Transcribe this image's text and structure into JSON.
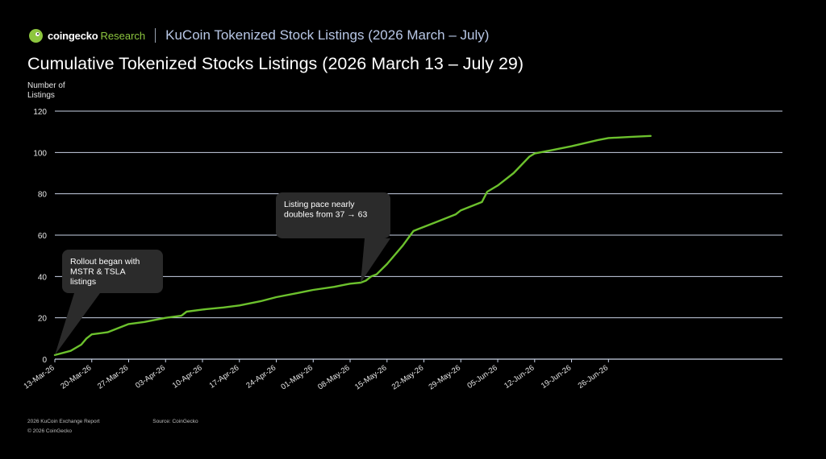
{
  "header": {
    "brand_name": "coingecko",
    "brand_suffix": "Research",
    "report_title": "KuCoin Tokenized Stock Listings (2026 March – July)"
  },
  "footer": {
    "report": "2026 KuCoin Exchange Report",
    "source": "Source: CoinGecko",
    "copyright": "© 2026 CoinGecko"
  },
  "colors": {
    "line": "#6cc12d",
    "grid": "#c9d2e6",
    "background": "#000000",
    "callout": "#2b2b2b"
  },
  "chart_data": {
    "type": "line",
    "title": "Cumulative Tokenized Stocks Listings (2026 March 13 – July 29)",
    "ylabel": "Number of Listings",
    "xlabel": "",
    "ylim": [
      0,
      120
    ],
    "yticks": [
      0,
      20,
      40,
      60,
      80,
      100,
      120
    ],
    "xlim": [
      "2026-03-13",
      "2026-07-29"
    ],
    "xticks": [
      {
        "date": "2026-03-13",
        "label": "13-Mar-26"
      },
      {
        "date": "2026-03-20",
        "label": "20-Mar-26"
      },
      {
        "date": "2026-03-27",
        "label": "27-Mar-26"
      },
      {
        "date": "2026-04-03",
        "label": "03-Apr-26"
      },
      {
        "date": "2026-04-10",
        "label": "10-Apr-26"
      },
      {
        "date": "2026-04-17",
        "label": "17-Apr-26"
      },
      {
        "date": "2026-04-24",
        "label": "24-Apr-26"
      },
      {
        "date": "2026-05-01",
        "label": "01-May-26"
      },
      {
        "date": "2026-05-08",
        "label": "08-May-26"
      },
      {
        "date": "2026-05-15",
        "label": "15-May-26"
      },
      {
        "date": "2026-05-22",
        "label": "22-May-26"
      },
      {
        "date": "2026-05-29",
        "label": "29-May-26"
      },
      {
        "date": "2026-06-05",
        "label": "05-Jun-26"
      },
      {
        "date": "2026-06-12",
        "label": "12-Jun-26"
      },
      {
        "date": "2026-06-19",
        "label": "19-Jun-26"
      },
      {
        "date": "2026-06-26",
        "label": "26-Jun-26"
      }
    ],
    "grid": true,
    "series": [
      {
        "points": [
          [
            "2026-03-13",
            2
          ],
          [
            "2026-03-16",
            4
          ],
          [
            "2026-03-18",
            7
          ],
          [
            "2026-03-19",
            10
          ],
          [
            "2026-03-20",
            12
          ],
          [
            "2026-03-23",
            13
          ],
          [
            "2026-03-27",
            17
          ],
          [
            "2026-03-30",
            18
          ],
          [
            "2026-04-03",
            20
          ],
          [
            "2026-04-06",
            21
          ],
          [
            "2026-04-07",
            23
          ],
          [
            "2026-04-10",
            24
          ],
          [
            "2026-04-14",
            25
          ],
          [
            "2026-04-17",
            26
          ],
          [
            "2026-04-21",
            28
          ],
          [
            "2026-04-24",
            30
          ],
          [
            "2026-04-28",
            32
          ],
          [
            "2026-04-30",
            33
          ],
          [
            "2026-05-01",
            33.5
          ],
          [
            "2026-05-05",
            35
          ],
          [
            "2026-05-07",
            36
          ],
          [
            "2026-05-08",
            36.5
          ],
          [
            "2026-05-10",
            37
          ],
          [
            "2026-05-11",
            38
          ],
          [
            "2026-05-12",
            40
          ],
          [
            "2026-05-13",
            41
          ],
          [
            "2026-05-15",
            46
          ],
          [
            "2026-05-18",
            55
          ],
          [
            "2026-05-20",
            62
          ],
          [
            "2026-05-21",
            63
          ],
          [
            "2026-05-24",
            66
          ],
          [
            "2026-05-28",
            70
          ],
          [
            "2026-05-29",
            72
          ],
          [
            "2026-06-02",
            76
          ],
          [
            "2026-06-03",
            81
          ],
          [
            "2026-06-05",
            84
          ],
          [
            "2026-06-08",
            90
          ],
          [
            "2026-06-11",
            98
          ],
          [
            "2026-06-12",
            99.5
          ],
          [
            "2026-06-15",
            101
          ],
          [
            "2026-06-19",
            103
          ],
          [
            "2026-06-24",
            106
          ],
          [
            "2026-06-26",
            107
          ],
          [
            "2026-06-30",
            107.5
          ],
          [
            "2026-07-04",
            108
          ]
        ]
      }
    ],
    "annotations": [
      {
        "text": "Rollout began with MSTR & TSLA listings",
        "date": "2026-03-13",
        "value": 2
      },
      {
        "text": "Listing pace nearly doubles from 37 → 63",
        "date": "2026-05-10",
        "value": 37
      }
    ]
  }
}
